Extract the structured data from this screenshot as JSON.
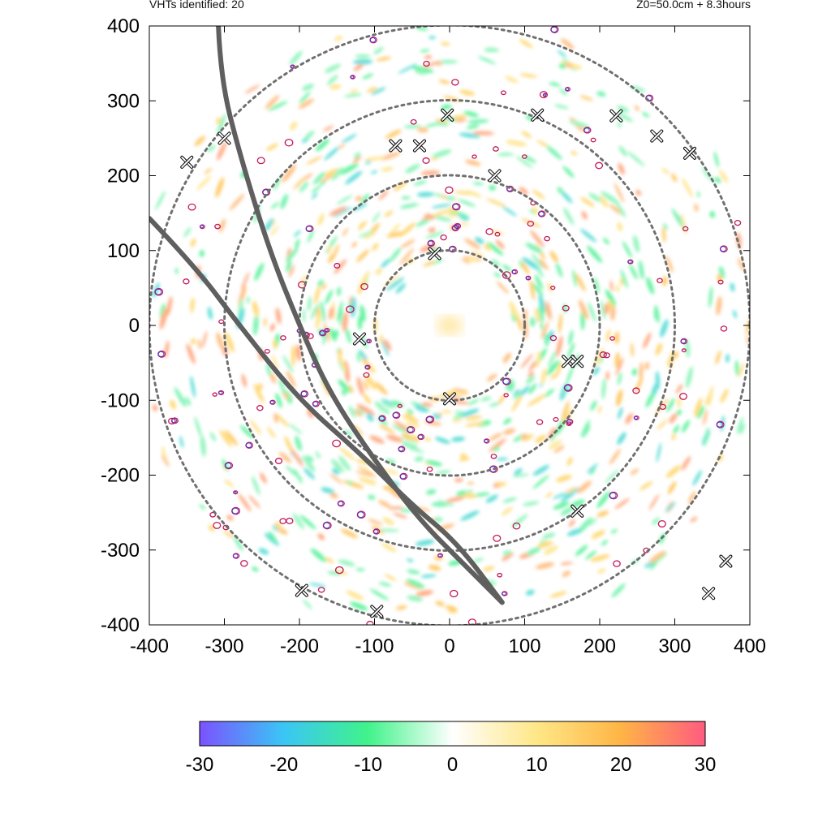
{
  "header": {
    "left": "VHTs identified: 20",
    "right": "Z0=50.0cm  + 8.3hours"
  },
  "chart_data": {
    "type": "heatmap",
    "title": "",
    "xlabel": "",
    "ylabel": "",
    "xlim": [
      -400,
      400
    ],
    "ylim": [
      -400,
      400
    ],
    "x_ticks": [
      "-400",
      "-300",
      "-200",
      "-100",
      "0",
      "100",
      "200",
      "300",
      "400"
    ],
    "y_ticks": [
      "400",
      "300",
      "200",
      "100",
      "0",
      "-100",
      "-200",
      "-300",
      "-400"
    ],
    "x_tick_values": [
      -400,
      -300,
      -200,
      -100,
      0,
      100,
      200,
      300,
      400
    ],
    "y_tick_values": [
      400,
      300,
      200,
      100,
      0,
      -100,
      -200,
      -300,
      -400
    ],
    "range_rings": [
      100,
      200,
      300,
      400
    ],
    "colorbar": {
      "range": [
        -30,
        30
      ],
      "ticks": [
        "-30",
        "-20",
        "-10",
        "0",
        "10",
        "20",
        "30"
      ],
      "tick_values": [
        -30,
        -20,
        -10,
        0,
        10,
        20,
        30
      ],
      "colors": [
        "#7b52ff",
        "#3ac6f5",
        "#40f38a",
        "#ffffff",
        "#ffe787",
        "#ffb545",
        "#ff5c7f"
      ]
    },
    "vht_markers": [
      [
        -350,
        218
      ],
      [
        -72,
        240
      ],
      [
        -3,
        281
      ],
      [
        117,
        281
      ],
      [
        222,
        280
      ],
      [
        276,
        253
      ],
      [
        -20,
        96
      ],
      [
        -120,
        -18
      ],
      [
        158,
        -48
      ],
      [
        0,
        -98
      ],
      [
        170,
        -248
      ],
      [
        -197,
        -354
      ],
      [
        -97,
        -382
      ],
      [
        368,
        -315
      ],
      [
        345,
        -358
      ],
      [
        170,
        -48
      ],
      [
        -40,
        240
      ],
      [
        60,
        200
      ],
      [
        -300,
        250
      ],
      [
        320,
        230
      ]
    ],
    "tracks": [
      {
        "points": [
          [
            -308,
            400
          ],
          [
            -305,
            330
          ],
          [
            -280,
            230
          ],
          [
            -240,
            100
          ],
          [
            -200,
            0
          ],
          [
            -160,
            -90
          ],
          [
            -100,
            -180
          ],
          [
            -40,
            -260
          ],
          [
            20,
            -320
          ],
          [
            70,
            -370
          ]
        ]
      },
      {
        "points": [
          [
            -400,
            143
          ],
          [
            -340,
            80
          ],
          [
            -280,
            0
          ],
          [
            -200,
            -100
          ],
          [
            -120,
            -170
          ],
          [
            -50,
            -240
          ],
          [
            10,
            -290
          ],
          [
            70,
            -370
          ]
        ]
      }
    ]
  }
}
